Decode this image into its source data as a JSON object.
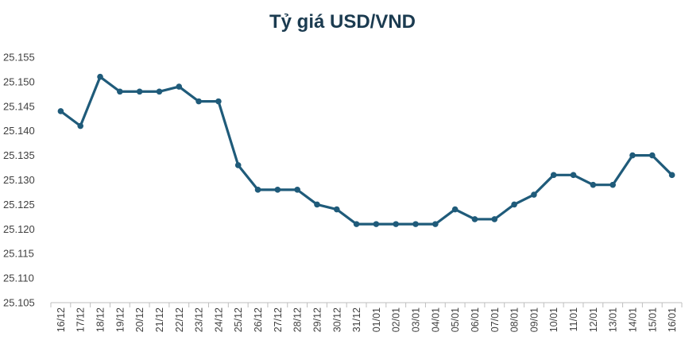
{
  "chart_data": {
    "type": "line",
    "title": "Tỷ giá USD/VND",
    "xlabel": "",
    "ylabel": "",
    "categories": [
      "16/12",
      "17/12",
      "18/12",
      "19/12",
      "20/12",
      "21/12",
      "22/12",
      "23/12",
      "24/12",
      "25/12",
      "26/12",
      "27/12",
      "28/12",
      "29/12",
      "30/12",
      "31/12",
      "01/01",
      "02/01",
      "03/01",
      "04/01",
      "05/01",
      "06/01",
      "07/01",
      "08/01",
      "09/01",
      "10/01",
      "11/01",
      "12/01",
      "13/01",
      "14/01",
      "15/01",
      "16/01"
    ],
    "series": [
      {
        "values": [
          25144,
          25141,
          25151,
          25148,
          25148,
          25148,
          25149,
          25146,
          25146,
          25133,
          25128,
          25128,
          25128,
          25125,
          25124,
          25121,
          25121,
          25121,
          25121,
          25121,
          25124,
          25122,
          25122,
          25125,
          25127,
          25131,
          25131,
          25129,
          25129,
          25135,
          25135,
          25131
        ]
      }
    ],
    "ylim": [
      25105,
      25155
    ],
    "yticks": [
      "25.105",
      "25.110",
      "25.115",
      "25.120",
      "25.125",
      "25.130",
      "25.135",
      "25.140",
      "25.145",
      "25.150",
      "25.155"
    ],
    "ytick_values": [
      25105,
      25110,
      25115,
      25120,
      25125,
      25130,
      25135,
      25140,
      25145,
      25150,
      25155
    ],
    "grid": false,
    "legend": "none",
    "colors": {
      "line": "#1f5b7a",
      "title": "#1b3b50",
      "axis": "#bfbfbf"
    }
  }
}
